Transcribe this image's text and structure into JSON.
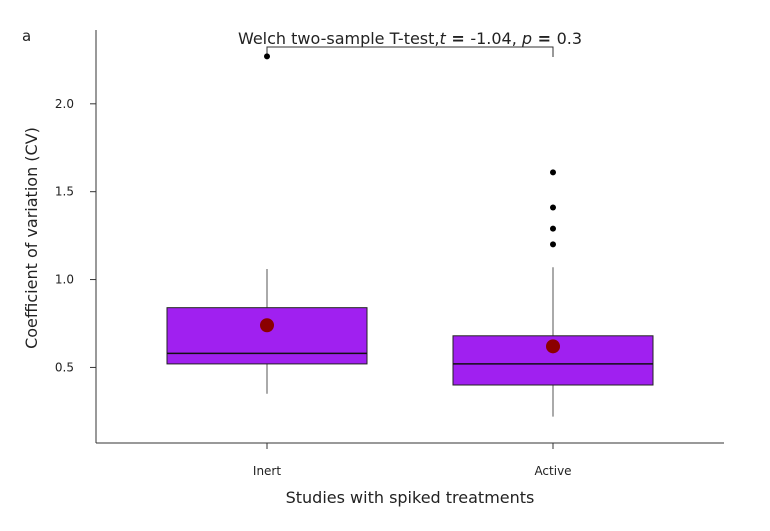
{
  "chart_data": {
    "type": "box",
    "panel_label": "a",
    "title_prefix": "Welch two-sample T-test,",
    "t_sym": "t",
    "t_eq": " = ",
    "t_val": "-1.04,",
    "p_sym": "p",
    "p_eq": " = ",
    "p_val": "0.3",
    "xlabel": "Studies with spiked treatments",
    "ylabel": "Coefficient of variation (CV)",
    "ylim": [
      0.07,
      2.42
    ],
    "yticks": [
      0.5,
      1.0,
      1.5,
      2.0
    ],
    "ytick_labels": [
      "0.5",
      "1.0",
      "1.5",
      "2.0"
    ],
    "categories": [
      "Inert",
      "Active"
    ],
    "boxes": [
      {
        "category": "Inert",
        "q1": 0.52,
        "median": 0.58,
        "q3": 0.84,
        "whisker_low": 0.35,
        "whisker_high": 1.06,
        "mean": 0.74,
        "outliers": [
          2.27
        ]
      },
      {
        "category": "Active",
        "q1": 0.4,
        "median": 0.52,
        "q3": 0.68,
        "whisker_low": 0.22,
        "whisker_high": 1.07,
        "mean": 0.62,
        "outliers": [
          1.2,
          1.29,
          1.41,
          1.61
        ]
      }
    ],
    "colors": {
      "box_fill": "#a020f0",
      "mean_point": "#8b0000",
      "outlier": "#000000",
      "axis": "#333333"
    }
  }
}
